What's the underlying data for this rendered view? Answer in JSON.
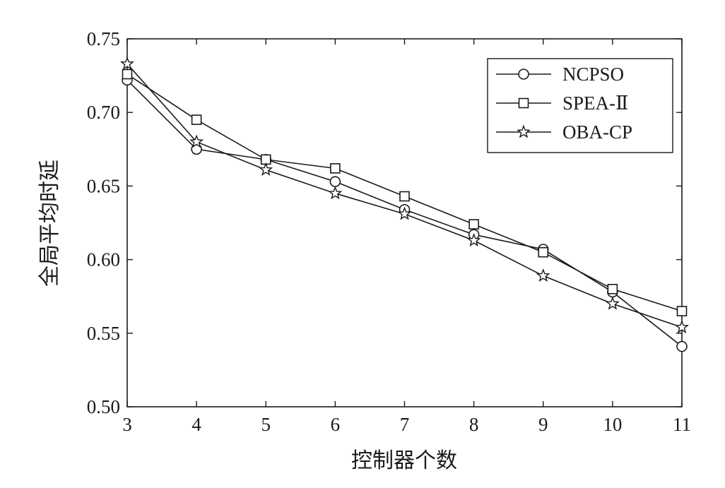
{
  "chart_data": {
    "type": "line",
    "title": "",
    "xlabel": "控制器个数",
    "ylabel": "全局平均时延",
    "x": [
      3,
      4,
      5,
      6,
      7,
      8,
      9,
      10,
      11
    ],
    "xlim": [
      3,
      11
    ],
    "ylim": [
      0.5,
      0.75
    ],
    "x_ticks": [
      "3",
      "4",
      "5",
      "6",
      "7",
      "8",
      "9",
      "10",
      "11"
    ],
    "y_ticks": [
      "0.50",
      "0.55",
      "0.60",
      "0.65",
      "0.70",
      "0.75"
    ],
    "grid": false,
    "legend_position": "top-right",
    "series": [
      {
        "name": "NCPSO",
        "marker": "circle",
        "values": [
          0.722,
          0.675,
          0.668,
          0.653,
          0.634,
          0.617,
          0.607,
          0.578,
          0.541
        ]
      },
      {
        "name": "SPEA-Ⅱ",
        "marker": "square",
        "values": [
          0.726,
          0.695,
          0.668,
          0.662,
          0.643,
          0.624,
          0.605,
          0.58,
          0.565
        ]
      },
      {
        "name": "OBA-CP",
        "marker": "star",
        "values": [
          0.733,
          0.68,
          0.661,
          0.645,
          0.631,
          0.613,
          0.589,
          0.57,
          0.554
        ]
      }
    ],
    "colors": {
      "line": "#1a1a1a",
      "background": "#ffffff"
    }
  }
}
